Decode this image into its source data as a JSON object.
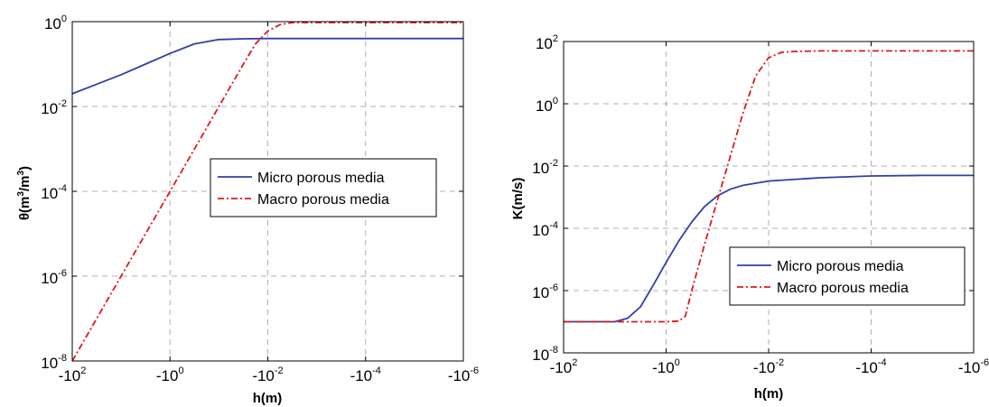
{
  "chart_data": [
    {
      "type": "line",
      "xlabel": "h(m)",
      "ylabel": "θ(m³/m³)",
      "ylabel_parts": [
        "θ(m",
        "3",
        "/m",
        "3",
        ")"
      ],
      "x_scale": "log-negative",
      "y_scale": "log",
      "xlim": [
        -100,
        -1e-06
      ],
      "ylim": [
        1e-08,
        1
      ],
      "x_ticks": [
        {
          "base": "-10",
          "exp": "2"
        },
        {
          "base": "-10",
          "exp": "0"
        },
        {
          "base": "-10",
          "exp": "-2"
        },
        {
          "base": "-10",
          "exp": "-4"
        },
        {
          "base": "-10",
          "exp": "-6"
        }
      ],
      "y_ticks": [
        {
          "base": "10",
          "exp": "-8"
        },
        {
          "base": "10",
          "exp": "-6"
        },
        {
          "base": "10",
          "exp": "-4"
        },
        {
          "base": "10",
          "exp": "-2"
        },
        {
          "base": "10",
          "exp": "0"
        }
      ],
      "grid": true,
      "legend_position": "center-right",
      "series": [
        {
          "name": "Micro porous media",
          "color": "#3040a8",
          "style": "solid",
          "x": [
            -100,
            -31.6,
            -10,
            -3.16,
            -1,
            -0.316,
            -0.1,
            -0.0316,
            -0.01,
            -0.0001,
            -1e-06
          ],
          "y": [
            0.02,
            0.0335,
            0.0562,
            0.1,
            0.178,
            0.3,
            0.38,
            0.395,
            0.4,
            0.4,
            0.4
          ]
        },
        {
          "name": "Macro porous media",
          "color": "#e01818",
          "style": "dashdot",
          "x": [
            -100,
            -10,
            -1,
            -0.1,
            -0.0316,
            -0.0178,
            -0.01,
            -0.00562,
            -0.00316,
            -0.0001,
            -1e-06
          ],
          "y": [
            1e-08,
            1e-06,
            0.0001,
            0.01,
            0.1,
            0.3,
            0.6,
            0.85,
            0.95,
            0.95,
            0.95
          ]
        }
      ]
    },
    {
      "type": "line",
      "xlabel": "h(m)",
      "ylabel": "K(m/s)",
      "x_scale": "log-negative",
      "y_scale": "log",
      "xlim": [
        -100,
        -1e-06
      ],
      "ylim": [
        1e-08,
        100
      ],
      "x_ticks": [
        {
          "base": "-10",
          "exp": "2"
        },
        {
          "base": "-10",
          "exp": "0"
        },
        {
          "base": "-10",
          "exp": "-2"
        },
        {
          "base": "-10",
          "exp": "-4"
        },
        {
          "base": "-10",
          "exp": "-6"
        }
      ],
      "y_ticks": [
        {
          "base": "10",
          "exp": "-8"
        },
        {
          "base": "10",
          "exp": "-6"
        },
        {
          "base": "10",
          "exp": "-4"
        },
        {
          "base": "10",
          "exp": "-2"
        },
        {
          "base": "10",
          "exp": "0"
        },
        {
          "base": "10",
          "exp": "2"
        }
      ],
      "grid": true,
      "legend_position": "lower-right",
      "series": [
        {
          "name": "Micro porous media",
          "color": "#3040a8",
          "style": "solid",
          "x": [
            -100,
            -10,
            -5.6,
            -3.16,
            -1.78,
            -1,
            -0.562,
            -0.316,
            -0.178,
            -0.1,
            -0.0562,
            -0.0316,
            -0.01,
            -0.001,
            -0.0001,
            -1e-05,
            -1e-06
          ],
          "y": [
            1e-07,
            1e-07,
            1.3e-07,
            3e-07,
            1.5e-06,
            8e-06,
            4e-05,
            0.00016,
            0.0005,
            0.0011,
            0.0018,
            0.0024,
            0.0033,
            0.0042,
            0.0048,
            0.005,
            0.005
          ]
        },
        {
          "name": "Macro porous media",
          "color": "#e01818",
          "style": "dashdot",
          "x": [
            -100,
            -1,
            -0.562,
            -0.422,
            -0.316,
            -0.178,
            -0.1,
            -0.0562,
            -0.0316,
            -0.0178,
            -0.01,
            -0.00562,
            -0.00316,
            -0.001,
            -0.0001,
            -1e-06
          ],
          "y": [
            1e-07,
            1e-07,
            1.05e-07,
            1.5e-07,
            1e-06,
            3e-05,
            0.0008,
            0.02,
            0.5,
            8,
            30,
            45,
            48,
            50,
            50,
            50
          ]
        }
      ]
    }
  ]
}
